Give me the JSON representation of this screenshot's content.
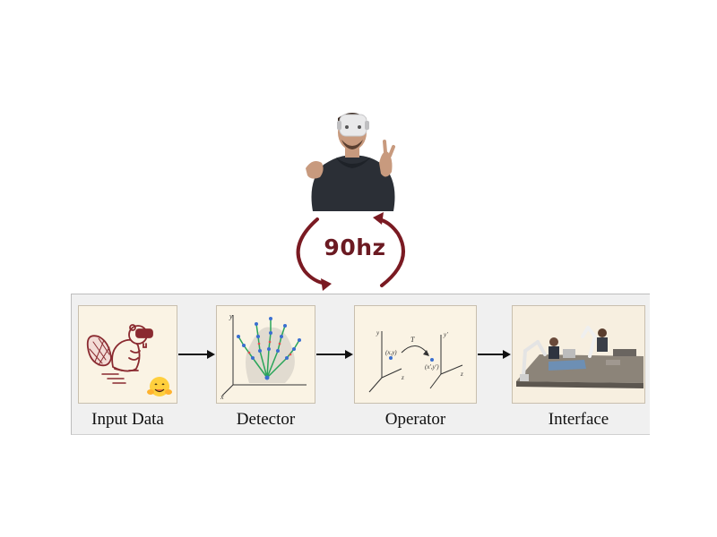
{
  "cycle": {
    "frequency_label": "90hz",
    "arrow_color": "#7a1a22"
  },
  "pipeline": {
    "stages": [
      {
        "label": "Input Data"
      },
      {
        "label": "Detector"
      },
      {
        "label": "Operator"
      },
      {
        "label": "Interface"
      }
    ]
  },
  "detector": {
    "axis_y": "y",
    "axis_x": "x"
  },
  "operator": {
    "axis_y1": "y",
    "axis_z1": "z",
    "point_1": "(x,y)",
    "transform": "T",
    "point_2": "(x',y')",
    "axis_y2": "y'",
    "axis_z2": "z"
  },
  "icons": {
    "person": "person-vr-headset-icon",
    "beaver": "beaver-vr-icon",
    "hugging_face": "hugging-face-icon",
    "hand": "hand-keypoints-icon",
    "robot": "robot-arms-scene-icon"
  }
}
